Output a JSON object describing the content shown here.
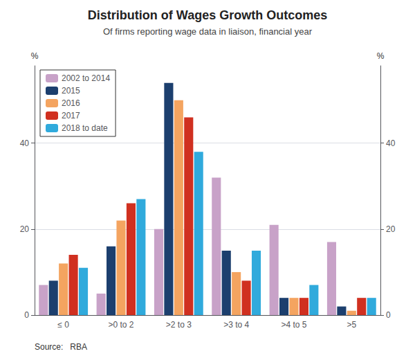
{
  "chart_data": {
    "type": "bar",
    "title": "Distribution of Wages Growth Outcomes",
    "subtitle": "Of firms reporting wage data in liaison, financial year",
    "source": "Source:   RBA",
    "categories": [
      "≤ 0",
      ">0 to 2",
      ">2 to 3",
      ">3 to 4",
      ">4 to 5",
      ">5"
    ],
    "series": [
      {
        "name": "2002 to 2014",
        "color": "#c8a2c8",
        "values": [
          7,
          5,
          20,
          32,
          21,
          17
        ]
      },
      {
        "name": "2015",
        "color": "#1c3f6e",
        "values": [
          8,
          16,
          54,
          15,
          4,
          2
        ]
      },
      {
        "name": "2016",
        "color": "#f4a460",
        "values": [
          12,
          22,
          50,
          10,
          4,
          1
        ]
      },
      {
        "name": "2017",
        "color": "#d03020",
        "values": [
          14,
          26,
          46,
          8,
          4,
          4
        ]
      },
      {
        "name": "2018 to date",
        "color": "#30aadc",
        "values": [
          11,
          27,
          38,
          15,
          7,
          4
        ]
      }
    ],
    "ylabel": "%",
    "ylim": [
      0,
      58
    ],
    "yticks": [
      0,
      20,
      40
    ],
    "y2label": "%",
    "y2lim": [
      0,
      58
    ],
    "y2ticks": [
      0,
      20,
      40
    ],
    "grid": true,
    "legend": "upper left"
  }
}
